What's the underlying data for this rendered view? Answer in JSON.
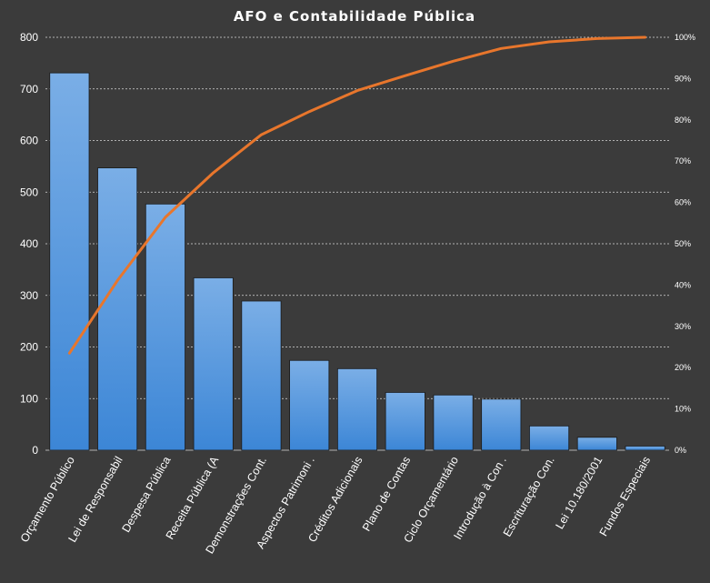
{
  "chart_data": {
    "type": "bar",
    "title": "AFO e Contabilidade Pública",
    "categories": [
      "Orçamento Público",
      "Lei de Responsabil",
      "Despesa Pública",
      "Receita Pública (A",
      "Demonstrações Cont.",
      "Aspectos Patrimoni .",
      "Créditos Adicionais",
      "Plano de Contas",
      "Ciclo Orçamentário",
      "Introdução à Con .",
      "Escrituração Con.",
      "Lei 10.180/2001",
      "Fundos Especiais"
    ],
    "series": [
      {
        "type": "bar",
        "values": [
          731,
          547,
          477,
          334,
          289,
          174,
          158,
          112,
          107,
          99,
          47,
          25,
          8
        ]
      },
      {
        "type": "line",
        "axis": "secondary",
        "values": [
          23.5,
          41.1,
          56.4,
          67.2,
          76.4,
          82.0,
          87.1,
          90.7,
          94.2,
          97.3,
          98.9,
          99.7,
          100.0
        ]
      }
    ],
    "ylim": [
      0,
      800
    ],
    "yticks": [
      "0",
      "100",
      "200",
      "300",
      "400",
      "500",
      "600",
      "700",
      "800"
    ],
    "y2lim": [
      0,
      100
    ],
    "y2ticks": [
      "0%",
      "10%",
      "20%",
      "30%",
      "40%",
      "50%",
      "60%",
      "70%",
      "80%",
      "90%",
      "100%"
    ],
    "grid": true,
    "colors": {
      "bar_top": "#7aaee6",
      "bar_bottom": "#3c86d6",
      "line": "#e8762c",
      "grid": "#d9d9d9",
      "background": "#3b3b3b"
    }
  }
}
